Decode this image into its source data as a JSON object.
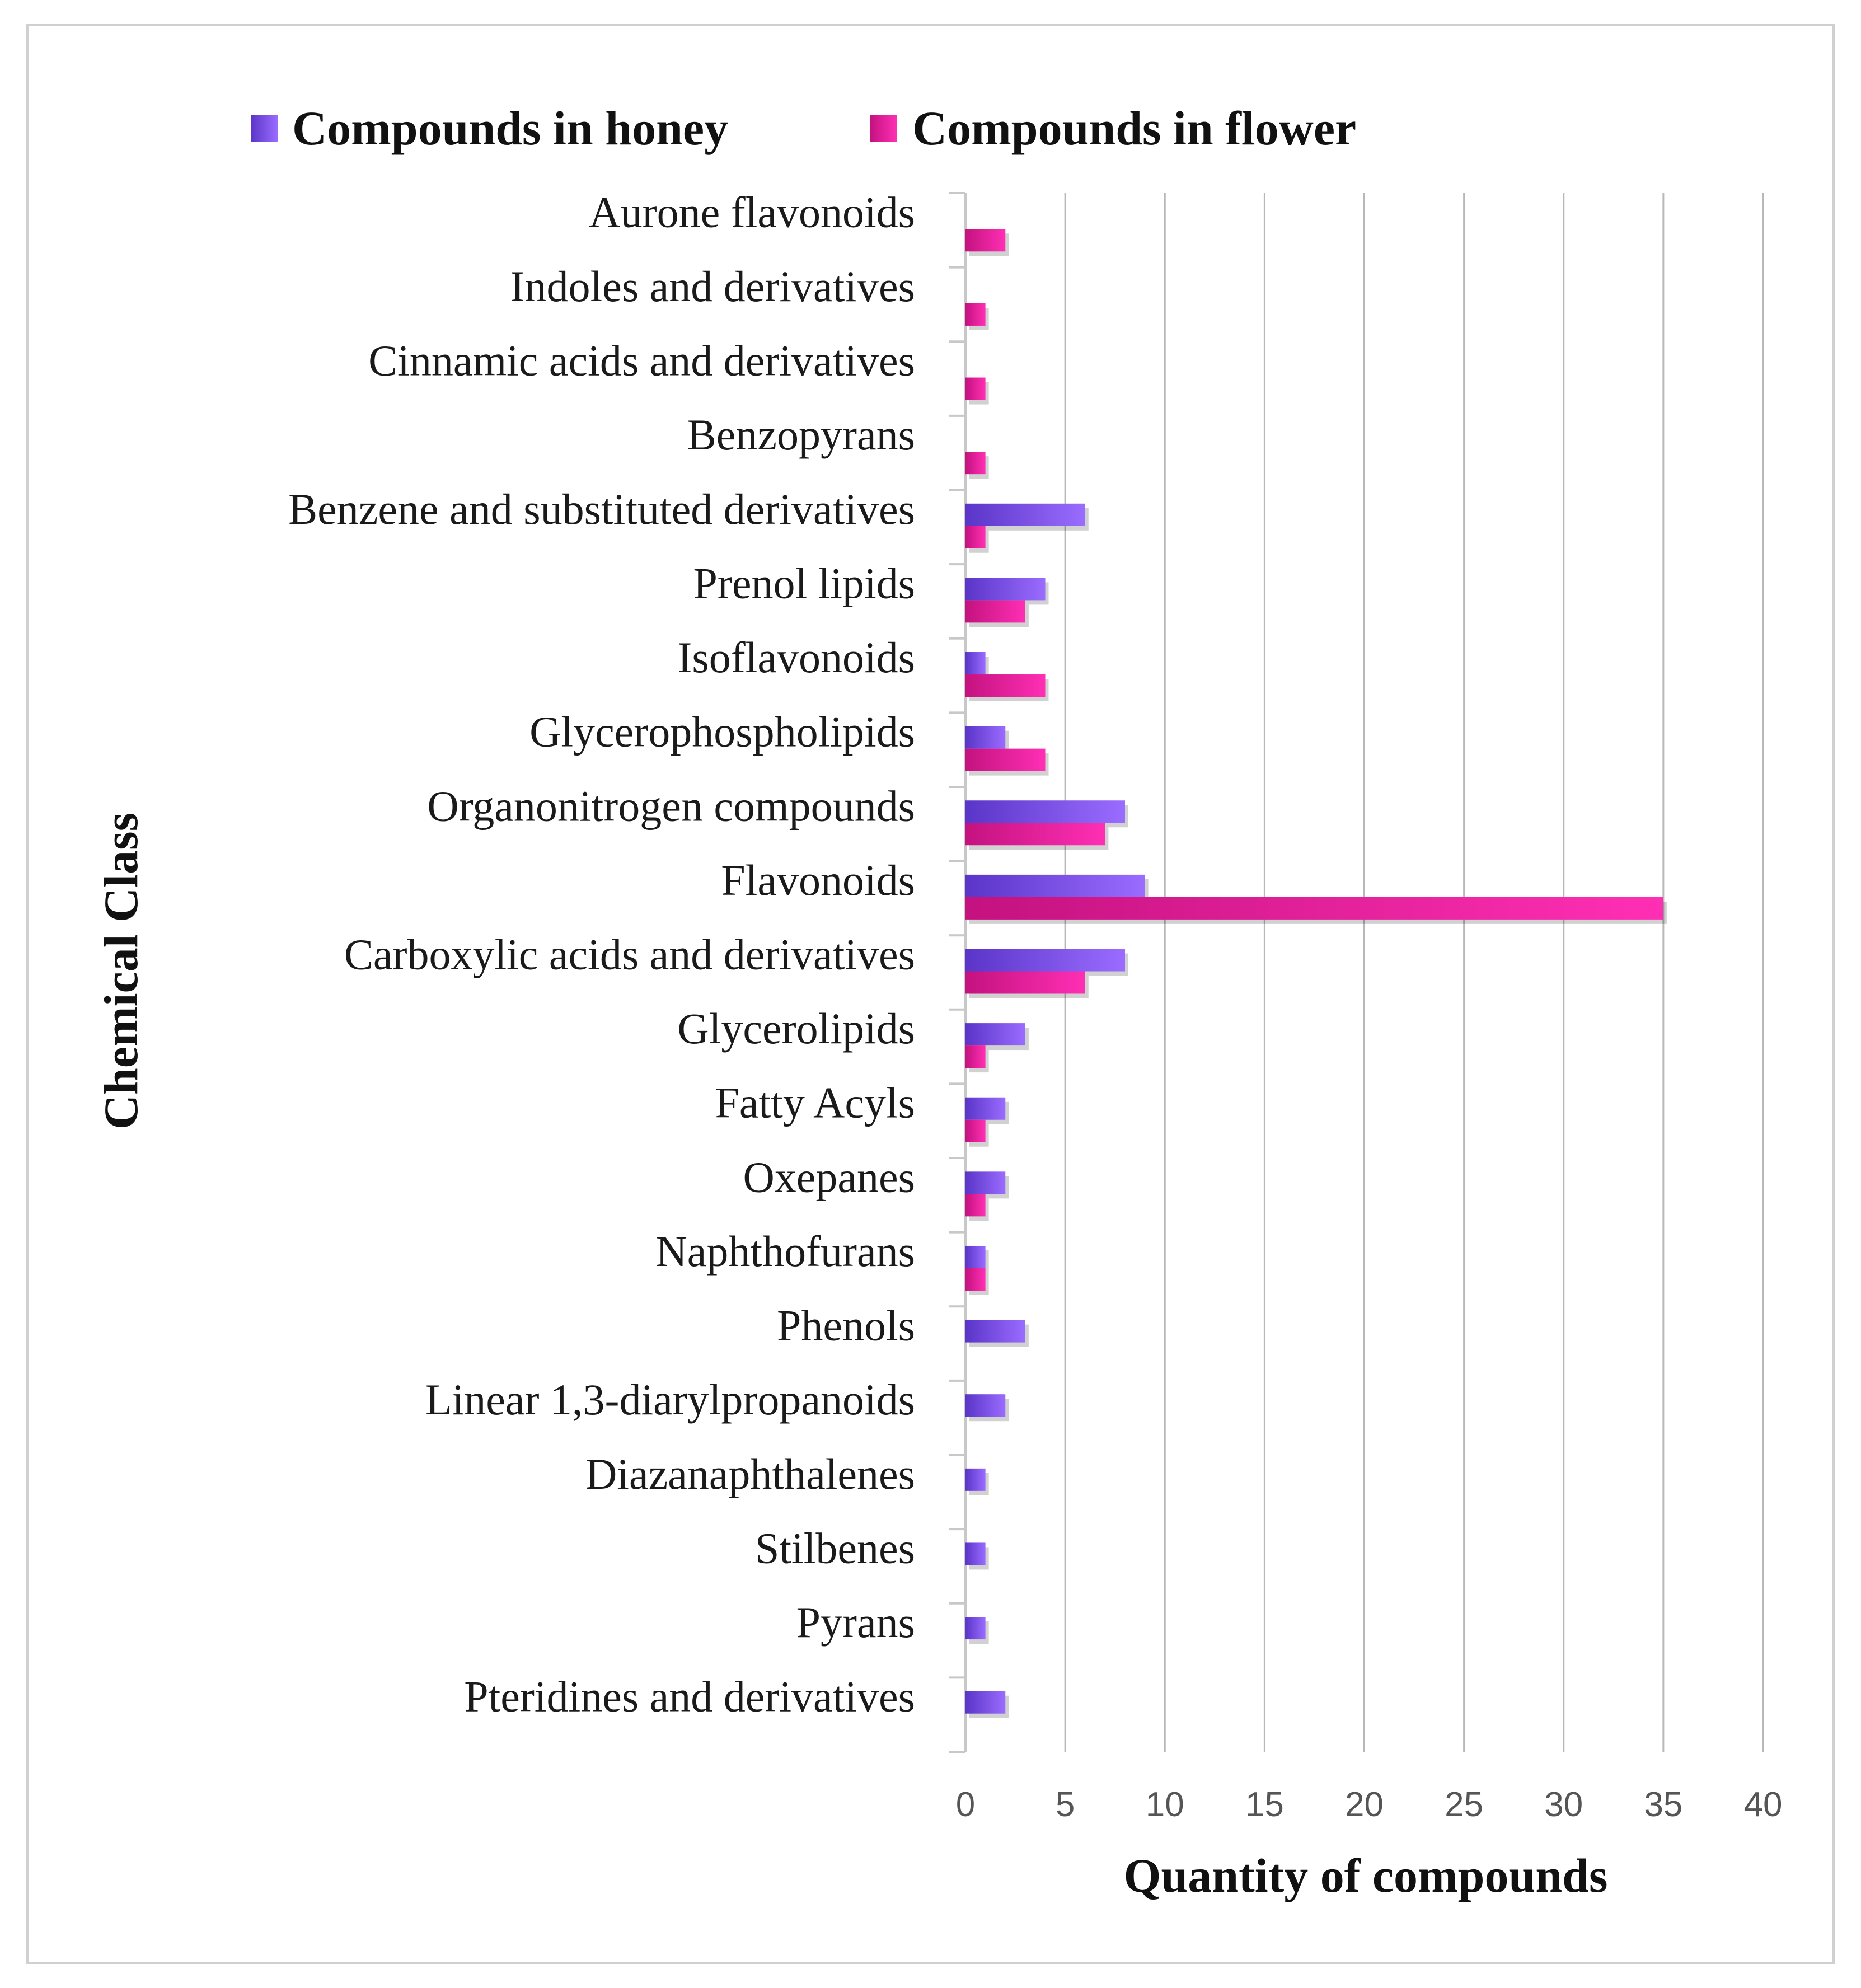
{
  "chart_data": {
    "type": "bar",
    "orientation": "horizontal",
    "title": "",
    "xlabel": "Quantity of compounds",
    "ylabel": "Chemical Class",
    "xlim": [
      0,
      40
    ],
    "xticks": [
      "0",
      "5",
      "10",
      "15",
      "20",
      "25",
      "30",
      "35",
      "40"
    ],
    "grid": true,
    "legend_position": "top",
    "categories": [
      "Aurone flavonoids",
      "Indoles and derivatives",
      "Cinnamic acids and derivatives",
      "Benzopyrans",
      "Benzene and substituted derivatives",
      "Prenol lipids",
      "Isoflavonoids",
      "Glycerophospholipids",
      "Organonitrogen compounds",
      "Flavonoids",
      "Carboxylic acids and derivatives",
      "Glycerolipids",
      "Fatty Acyls",
      "Oxepanes",
      "Naphthofurans",
      "Phenols",
      "Linear 1,3-diarylpropanoids",
      "Diazanaphthalenes",
      "Stilbenes",
      "Pyrans",
      "Pteridines and derivatives"
    ],
    "series": [
      {
        "name": "Compounds in honey",
        "color": "#7b4fe6",
        "values": [
          0,
          0,
          0,
          0,
          6,
          4,
          1,
          2,
          8,
          9,
          8,
          3,
          2,
          2,
          1,
          3,
          2,
          1,
          1,
          1,
          2
        ]
      },
      {
        "name": "Compounds in flower",
        "color": "#e0189a",
        "values": [
          2,
          1,
          1,
          1,
          1,
          3,
          4,
          4,
          7,
          35,
          6,
          1,
          1,
          1,
          1,
          0,
          0,
          0,
          0,
          0,
          0
        ]
      }
    ]
  }
}
